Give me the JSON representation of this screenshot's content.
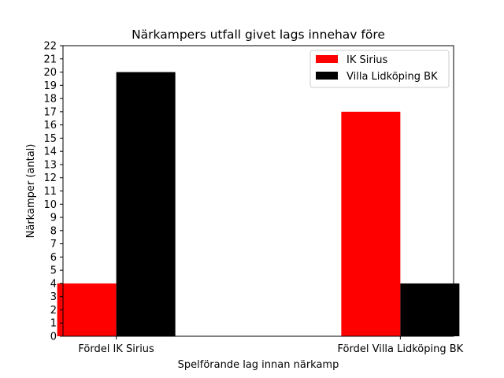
{
  "chart_data": {
    "type": "bar",
    "title": "Närkampers utfall givet lags innehav före",
    "xlabel": "Spelförande lag innan närkamp",
    "ylabel": "Närkamper (antal)",
    "categories": [
      "Fördel IK Sirius",
      "Fördel Villa Lidköping BK"
    ],
    "series": [
      {
        "name": "IK Sirius",
        "color": "#ff0000",
        "values": [
          4,
          17
        ]
      },
      {
        "name": "Villa Lidköping BK",
        "color": "#000000",
        "values": [
          20,
          4
        ]
      }
    ],
    "ylim": [
      0,
      22
    ],
    "yticks": [
      "0",
      "1",
      "2",
      "3",
      "4",
      "5",
      "6",
      "7",
      "8",
      "9",
      "10",
      "11",
      "12",
      "13",
      "14",
      "15",
      "16",
      "17",
      "18",
      "19",
      "20",
      "21",
      "22"
    ],
    "grid": false,
    "legend_position": "top-right"
  }
}
